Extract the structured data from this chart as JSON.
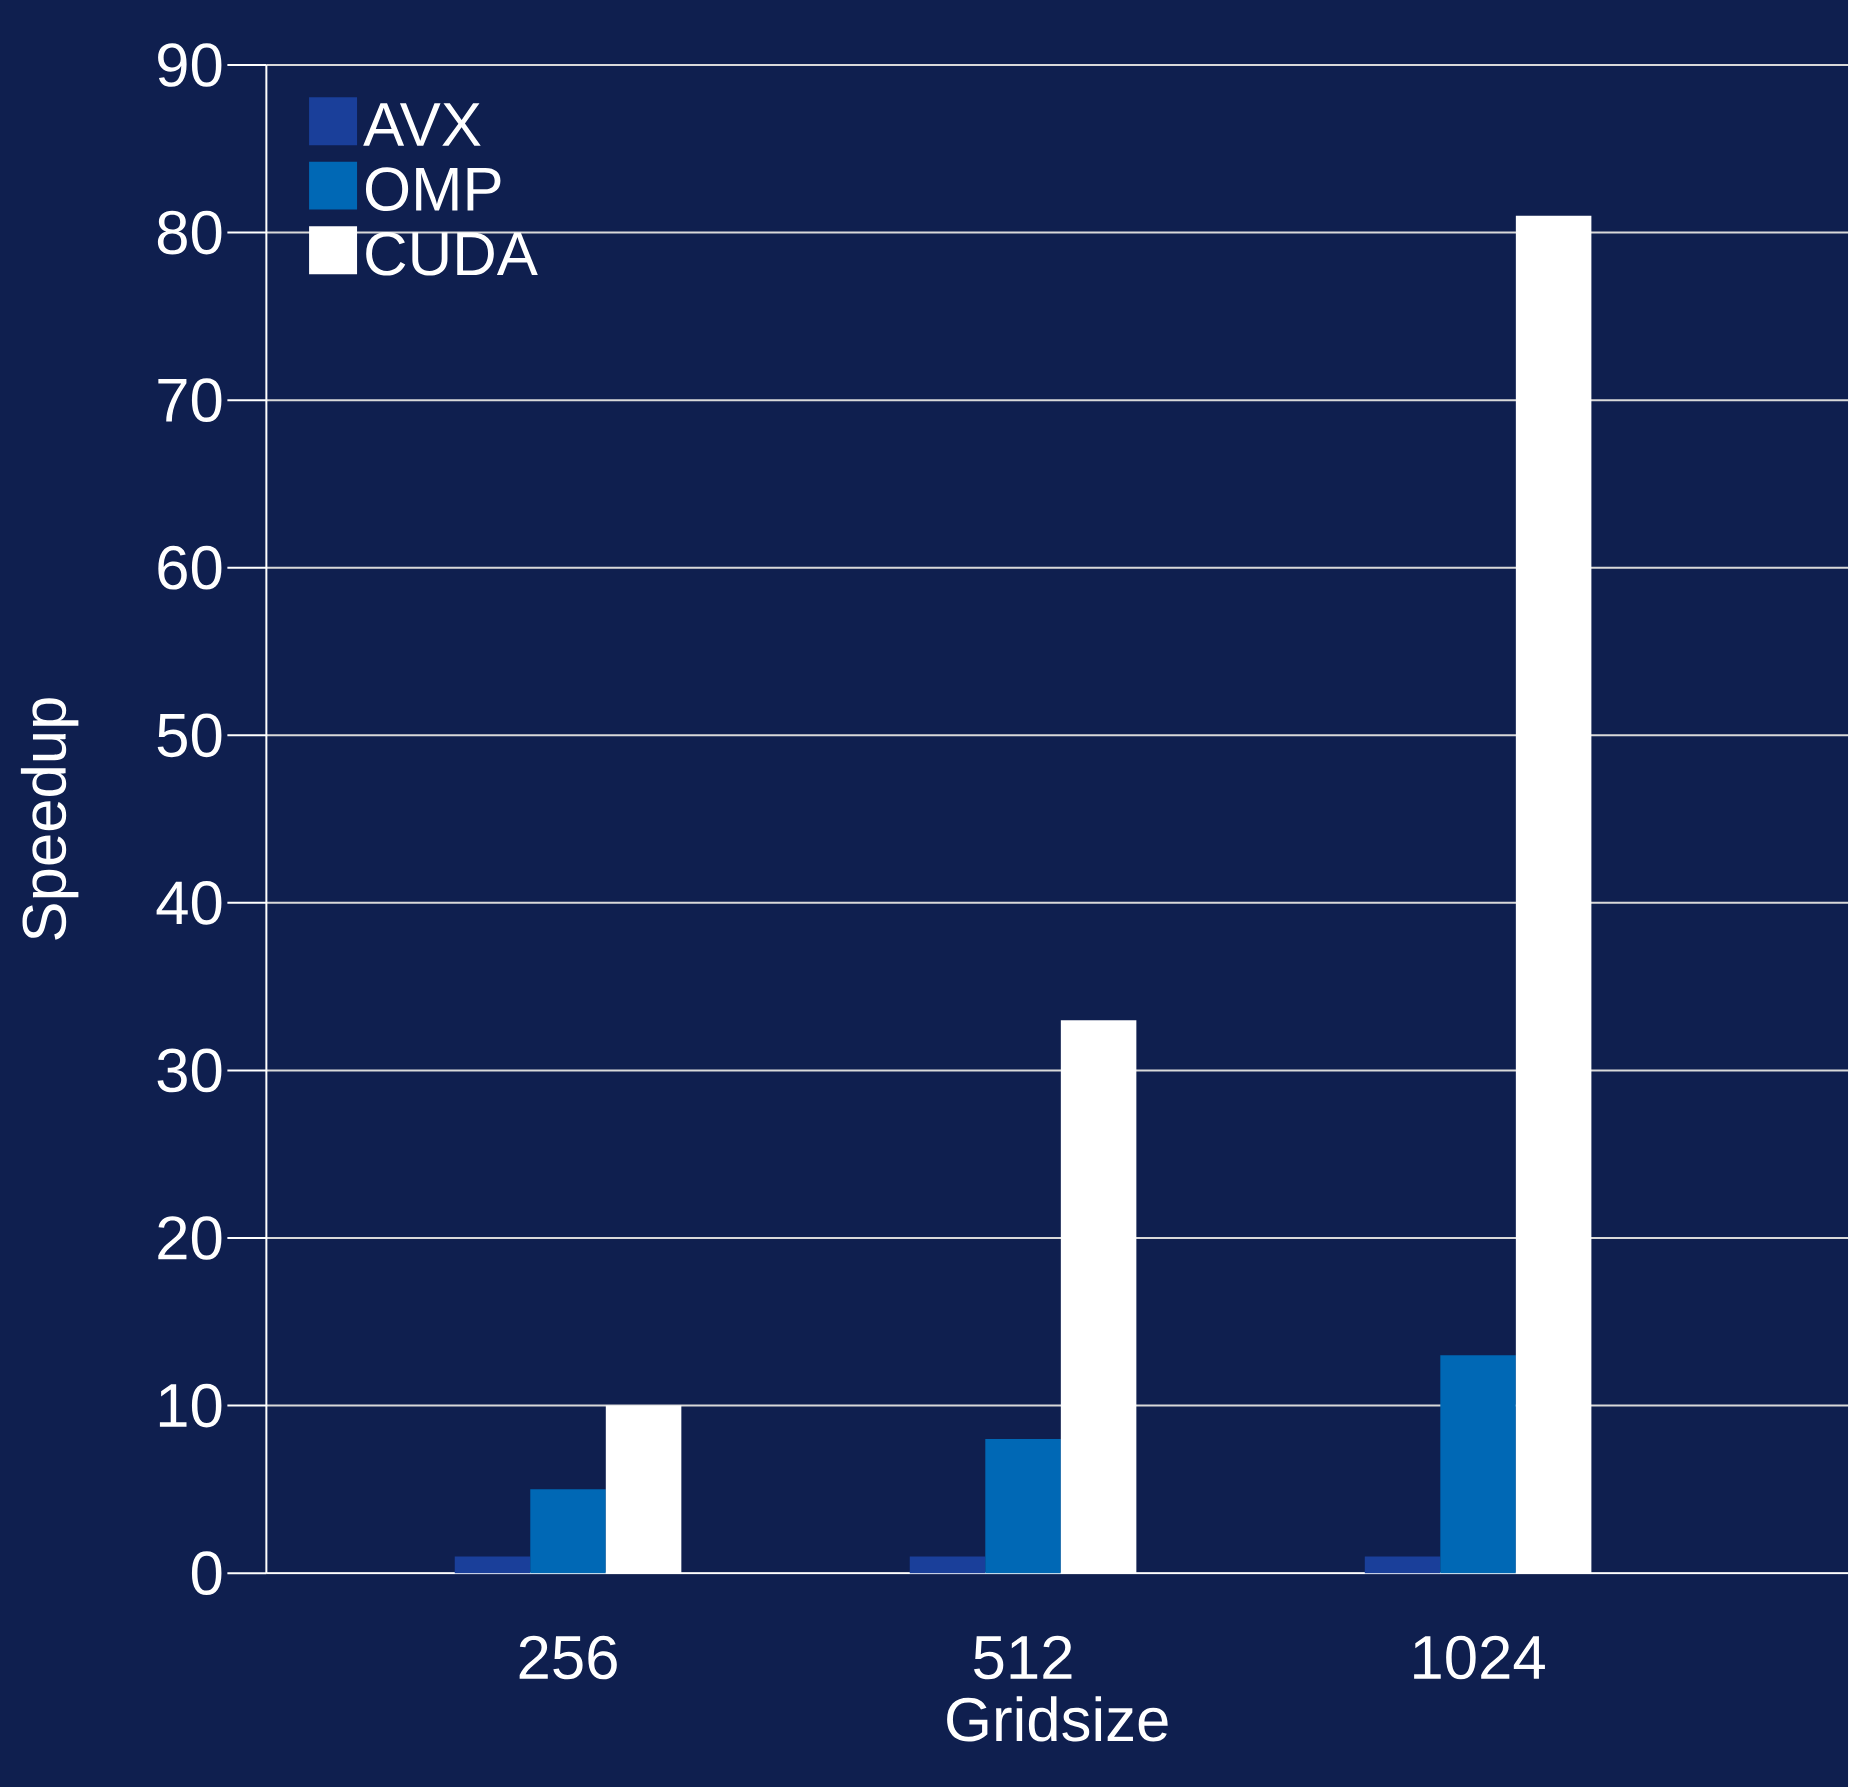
{
  "chart_data": {
    "type": "bar",
    "xlabel": "Gridsize",
    "ylabel": "Speedup",
    "categories": [
      "256",
      "512",
      "1024"
    ],
    "series": [
      {
        "name": "AVX",
        "color": "#1a3f9a",
        "values": [
          1,
          1,
          1
        ]
      },
      {
        "name": "OMP",
        "color": "#0068b5",
        "values": [
          5,
          8,
          13
        ]
      },
      {
        "name": "CUDA",
        "color": "#ffffff",
        "values": [
          10,
          33,
          81
        ]
      }
    ],
    "ylim": [
      0,
      90
    ],
    "yticks": [
      0,
      10,
      20,
      30,
      40,
      50,
      60,
      70,
      80,
      90
    ],
    "grid": "y",
    "legend": "top left"
  }
}
